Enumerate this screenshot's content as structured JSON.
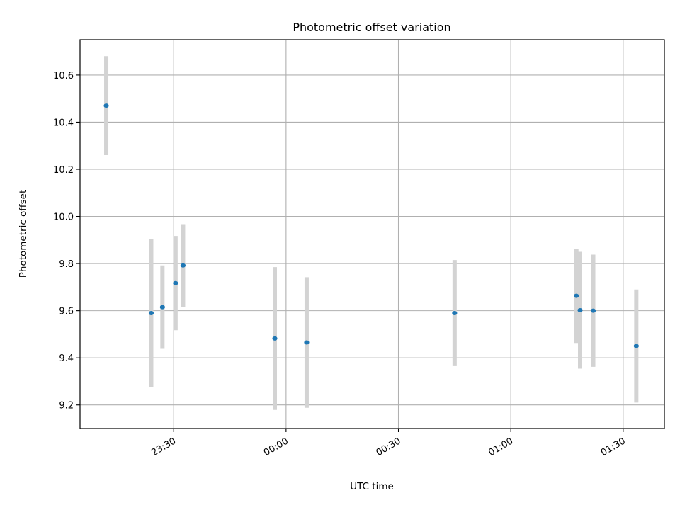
{
  "chart_data": {
    "type": "scatter",
    "title": "Photometric offset variation",
    "xlabel": "UTC time",
    "ylabel": "Photometric offset",
    "x_axis": {
      "kind": "time",
      "range": [
        "23:05",
        "01:41"
      ],
      "ticks": [
        "23:30",
        "00:00",
        "00:30",
        "01:00",
        "01:30"
      ]
    },
    "y_axis": {
      "range": [
        9.1,
        10.75
      ],
      "ticks": [
        "9.2",
        "9.4",
        "9.6",
        "9.8",
        "10.0",
        "10.2",
        "10.4",
        "10.6"
      ]
    },
    "grid": true,
    "points": [
      {
        "time": "23:12",
        "y": 10.47,
        "err": 0.21
      },
      {
        "time": "23:24",
        "y": 9.59,
        "err": 0.315
      },
      {
        "time": "23:27",
        "y": 9.615,
        "err": 0.177
      },
      {
        "time": "23:30.5",
        "y": 9.717,
        "err": 0.2
      },
      {
        "time": "23:32.5",
        "y": 9.792,
        "err": 0.175
      },
      {
        "time": "23:57",
        "y": 9.482,
        "err": 0.303
      },
      {
        "time": "00:05.5",
        "y": 9.465,
        "err": 0.277
      },
      {
        "time": "00:45",
        "y": 9.59,
        "err": 0.225
      },
      {
        "time": "01:17.5",
        "y": 9.663,
        "err": 0.2
      },
      {
        "time": "01:18.5",
        "y": 9.602,
        "err": 0.248
      },
      {
        "time": "01:22",
        "y": 9.6,
        "err": 0.238
      },
      {
        "time": "01:33.5",
        "y": 9.45,
        "err": 0.24
      }
    ],
    "colors": {
      "point": "#1f77b4",
      "errorbar": "#d3d3d3",
      "grid": "#b0b0b0",
      "axes": "#000000"
    }
  }
}
